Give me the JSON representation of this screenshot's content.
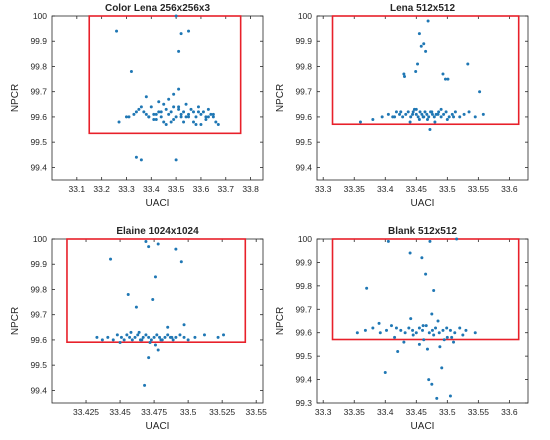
{
  "figure": {
    "colors": {
      "point": "#1f77b4",
      "box": "#e8202a",
      "axis": "#262626",
      "text": "#262626"
    }
  },
  "chart_data": [
    {
      "type": "scatter",
      "title": "Color Lena 256x256x3",
      "xlabel": "UACI",
      "ylabel": "NPCR",
      "xlim": [
        33.0,
        33.85
      ],
      "ylim": [
        99.35,
        100.0
      ],
      "xticks": [
        "33.1",
        "33.2",
        "33.3",
        "33.4",
        "33.5",
        "33.6",
        "33.7",
        "33.8"
      ],
      "xtick_values": [
        33.1,
        33.2,
        33.3,
        33.4,
        33.5,
        33.6,
        33.7,
        33.8
      ],
      "yticks": [
        "99.4",
        "99.5",
        "99.6",
        "99.7",
        "99.8",
        "99.9",
        "100"
      ],
      "ytick_values": [
        99.4,
        99.5,
        99.6,
        99.7,
        99.8,
        99.9,
        100.0
      ],
      "threshold_box": {
        "x_min": 33.15,
        "x_max": 33.76,
        "y_min": 99.535,
        "y_max": 100.0
      },
      "points": {
        "x": [
          33.26,
          33.5,
          33.52,
          33.55,
          33.51,
          33.32,
          33.51,
          33.38,
          33.49,
          33.41,
          33.34,
          33.36,
          33.27,
          33.3,
          33.33,
          33.35,
          33.37,
          33.39,
          33.4,
          33.42,
          33.43,
          33.44,
          33.45,
          33.46,
          33.47,
          33.48,
          33.49,
          33.5,
          33.51,
          33.52,
          33.53,
          33.54,
          33.55,
          33.56,
          33.57,
          33.58,
          33.59,
          33.6,
          33.61,
          33.62,
          33.63,
          33.64,
          33.65,
          33.66,
          33.67,
          33.31,
          33.36,
          33.41,
          33.44,
          33.46,
          33.48,
          33.5,
          33.53,
          33.55,
          33.58,
          33.62,
          33.65,
          33.34,
          33.39,
          33.45,
          33.49,
          33.52,
          33.57,
          33.6,
          33.43,
          33.47,
          33.51,
          33.54,
          33.59,
          33.63,
          33.38,
          33.42
        ],
        "y": [
          99.94,
          100.0,
          99.93,
          99.94,
          99.86,
          99.78,
          99.71,
          99.68,
          99.69,
          99.61,
          99.44,
          99.43,
          99.58,
          99.6,
          99.61,
          99.63,
          99.62,
          99.6,
          99.64,
          99.61,
          99.62,
          99.6,
          99.65,
          99.63,
          99.61,
          99.62,
          99.64,
          99.6,
          99.63,
          99.61,
          99.62,
          99.6,
          99.61,
          99.63,
          99.62,
          99.6,
          99.64,
          99.61,
          99.62,
          99.6,
          99.63,
          99.61,
          99.6,
          99.58,
          99.57,
          99.6,
          99.64,
          99.59,
          99.62,
          99.57,
          99.58,
          99.43,
          99.58,
          99.6,
          99.57,
          99.59,
          99.61,
          99.62,
          99.6,
          99.58,
          99.59,
          99.6,
          99.58,
          99.57,
          99.66,
          99.67,
          99.64,
          99.65,
          99.62,
          99.6,
          99.61,
          99.59
        ]
      }
    },
    {
      "type": "scatter",
      "title": "Lena 512x512",
      "xlabel": "UACI",
      "ylabel": "NPCR",
      "xlim": [
        33.29,
        33.63
      ],
      "ylim": [
        99.35,
        100.0
      ],
      "xticks": [
        "33.3",
        "33.35",
        "33.4",
        "33.45",
        "33.5",
        "33.55",
        "33.6"
      ],
      "xtick_values": [
        33.3,
        33.35,
        33.4,
        33.45,
        33.5,
        33.55,
        33.6
      ],
      "yticks": [
        "99.4",
        "99.5",
        "99.6",
        "99.7",
        "99.8",
        "99.9",
        "100"
      ],
      "ytick_values": [
        99.4,
        99.5,
        99.6,
        99.7,
        99.8,
        99.9,
        100.0
      ],
      "threshold_box": {
        "x_min": 33.315,
        "x_max": 33.615,
        "y_min": 99.571,
        "y_max": 100.0
      },
      "points": {
        "x": [
          33.469,
          33.455,
          33.462,
          33.458,
          33.465,
          33.452,
          33.43,
          33.431,
          33.449,
          33.493,
          33.497,
          33.501,
          33.533,
          33.552,
          33.472,
          33.36,
          33.38,
          33.395,
          33.405,
          33.412,
          33.418,
          33.423,
          33.428,
          33.433,
          33.437,
          33.441,
          33.444,
          33.447,
          33.45,
          33.453,
          33.456,
          33.459,
          33.461,
          33.464,
          33.467,
          33.47,
          33.473,
          33.476,
          33.479,
          33.482,
          33.486,
          33.49,
          33.494,
          33.498,
          33.503,
          33.508,
          33.513,
          33.52,
          33.527,
          33.535,
          33.545,
          33.558,
          33.44,
          33.455,
          33.468,
          33.48,
          33.5,
          33.425,
          33.45,
          33.475,
          33.49,
          33.51,
          33.445,
          33.462,
          33.485,
          33.415
        ],
        "y": [
          99.98,
          99.93,
          99.89,
          99.88,
          99.86,
          99.81,
          99.77,
          99.76,
          99.78,
          99.77,
          99.75,
          99.75,
          99.81,
          99.7,
          99.55,
          99.58,
          99.59,
          99.6,
          99.61,
          99.6,
          99.62,
          99.61,
          99.6,
          99.61,
          99.62,
          99.6,
          99.61,
          99.63,
          99.61,
          99.6,
          99.62,
          99.61,
          99.6,
          99.62,
          99.61,
          99.6,
          99.62,
          99.61,
          99.6,
          99.61,
          99.62,
          99.6,
          99.61,
          99.62,
          99.6,
          99.61,
          99.62,
          99.6,
          99.61,
          99.62,
          99.6,
          99.61,
          99.58,
          99.59,
          99.59,
          99.58,
          99.59,
          99.62,
          99.63,
          99.62,
          99.63,
          99.6,
          99.62,
          99.6,
          99.61,
          99.6
        ]
      }
    },
    {
      "type": "scatter",
      "title": "Elaine 1024x1024",
      "xlabel": "UACI",
      "ylabel": "NPCR",
      "xlim": [
        33.4,
        33.555
      ],
      "ylim": [
        99.35,
        100.0
      ],
      "xticks": [
        "33.425",
        "33.45",
        "33.475",
        "33.5",
        "33.525",
        "33.55"
      ],
      "xtick_values": [
        33.425,
        33.45,
        33.475,
        33.5,
        33.525,
        33.55
      ],
      "yticks": [
        "99.4",
        "99.5",
        "99.6",
        "99.7",
        "99.8",
        "99.9",
        "100"
      ],
      "ytick_values": [
        99.4,
        99.5,
        99.6,
        99.7,
        99.8,
        99.9,
        100.0
      ],
      "threshold_box": {
        "x_min": 33.411,
        "x_max": 33.542,
        "y_min": 99.591,
        "y_max": 100.0
      },
      "points": {
        "x": [
          33.469,
          33.471,
          33.478,
          33.491,
          33.495,
          33.443,
          33.476,
          33.456,
          33.462,
          33.474,
          33.497,
          33.485,
          33.468,
          33.471,
          33.478,
          33.433,
          33.437,
          33.441,
          33.445,
          33.448,
          33.451,
          33.453,
          33.455,
          33.457,
          33.459,
          33.461,
          33.463,
          33.465,
          33.467,
          33.469,
          33.471,
          33.473,
          33.475,
          33.477,
          33.479,
          33.481,
          33.483,
          33.485,
          33.487,
          33.489,
          33.491,
          33.494,
          33.497,
          33.5,
          33.505,
          33.512,
          33.522,
          33.526,
          33.458,
          33.466,
          33.472,
          33.48,
          33.488,
          33.45,
          33.464,
          33.476
        ],
        "y": [
          99.99,
          99.97,
          99.98,
          99.96,
          99.91,
          99.92,
          99.85,
          99.78,
          99.73,
          99.76,
          99.66,
          99.65,
          99.42,
          99.53,
          99.56,
          99.61,
          99.6,
          99.61,
          99.6,
          99.62,
          99.61,
          99.6,
          99.62,
          99.61,
          99.6,
          99.61,
          99.62,
          99.6,
          99.61,
          99.62,
          99.61,
          99.6,
          99.61,
          99.62,
          99.61,
          99.6,
          99.61,
          99.62,
          99.61,
          99.6,
          99.61,
          99.62,
          99.61,
          99.6,
          99.61,
          99.62,
          99.61,
          99.62,
          99.63,
          99.6,
          99.59,
          99.6,
          99.61,
          99.59,
          99.63,
          99.58
        ]
      }
    },
    {
      "type": "scatter",
      "title": "Blank 512x512",
      "xlabel": "UACI",
      "ylabel": "NPCR",
      "xlim": [
        33.29,
        33.63
      ],
      "ylim": [
        99.3,
        100.0
      ],
      "xticks": [
        "33.3",
        "33.35",
        "33.4",
        "33.45",
        "33.5",
        "33.55",
        "33.6"
      ],
      "xtick_values": [
        33.3,
        33.35,
        33.4,
        33.45,
        33.5,
        33.55,
        33.6
      ],
      "yticks": [
        "99.3",
        "99.4",
        "99.5",
        "99.6",
        "99.7",
        "99.8",
        "99.9",
        "100"
      ],
      "ytick_values": [
        99.3,
        99.4,
        99.5,
        99.6,
        99.7,
        99.8,
        99.9,
        100.0
      ],
      "threshold_box": {
        "x_min": 33.315,
        "x_max": 33.615,
        "y_min": 99.571,
        "y_max": 100.0
      },
      "points": {
        "x": [
          33.405,
          33.515,
          33.472,
          33.44,
          33.459,
          33.37,
          33.478,
          33.475,
          33.465,
          33.441,
          33.461,
          33.485,
          33.507,
          33.42,
          33.4,
          33.505,
          33.483,
          33.475,
          33.47,
          33.491,
          33.355,
          33.368,
          33.38,
          33.392,
          33.402,
          33.41,
          33.418,
          33.425,
          33.432,
          33.438,
          33.444,
          33.45,
          33.455,
          33.46,
          33.466,
          33.471,
          33.476,
          33.481,
          33.487,
          33.493,
          33.499,
          33.505,
          33.512,
          33.52,
          33.53,
          33.545,
          33.415,
          33.445,
          33.462,
          33.478,
          33.5,
          33.43,
          33.455,
          33.488,
          33.51,
          33.39,
          33.468,
          33.495,
          33.525
        ],
        "y": [
          99.99,
          100.0,
          99.99,
          99.94,
          99.92,
          99.79,
          99.78,
          99.68,
          99.85,
          99.66,
          99.63,
          99.65,
          99.58,
          99.52,
          99.43,
          99.33,
          99.32,
          99.38,
          99.4,
          99.45,
          99.6,
          99.61,
          99.62,
          99.6,
          99.61,
          99.63,
          99.62,
          99.61,
          99.6,
          99.62,
          99.61,
          99.6,
          99.62,
          99.61,
          99.63,
          99.6,
          99.61,
          99.62,
          99.6,
          99.61,
          99.62,
          99.61,
          99.6,
          99.62,
          99.61,
          99.6,
          99.58,
          99.59,
          99.57,
          99.59,
          99.58,
          99.56,
          99.55,
          99.54,
          99.56,
          99.64,
          99.53,
          99.57,
          99.59
        ]
      }
    }
  ]
}
